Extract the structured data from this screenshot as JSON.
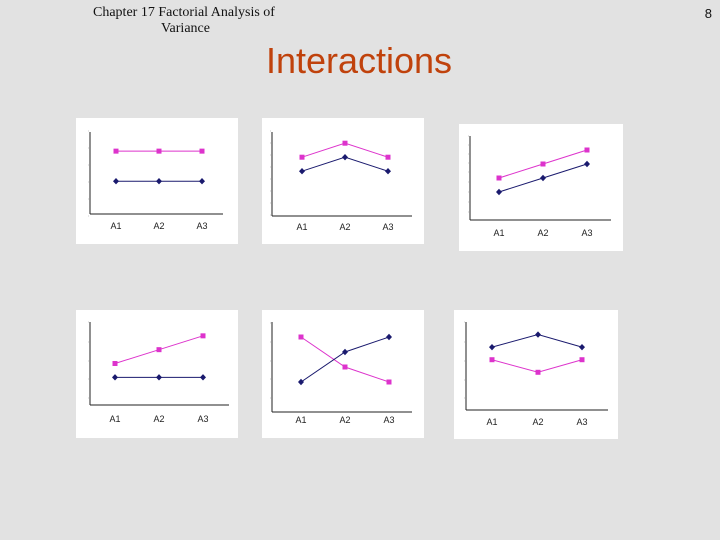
{
  "header": {
    "chapter_line1": "Chapter 17  Factorial Analysis of",
    "chapter_line2": "Variance",
    "slide_number": "8",
    "title": "Interactions"
  },
  "colors": {
    "series_b1": "#1a1a6e",
    "series_b2": "#dd33cc",
    "title": "#c0420c"
  },
  "chart_data": [
    {
      "type": "line",
      "categories": [
        "A1",
        "A2",
        "A3"
      ],
      "series": [
        {
          "values": [
            2.3,
            2.3,
            2.3
          ]
        },
        {
          "values": [
            1.2,
            1.2,
            1.2
          ]
        }
      ],
      "ylim": [
        0,
        3
      ]
    },
    {
      "type": "line",
      "categories": [
        "A1",
        "A2",
        "A3"
      ],
      "series": [
        {
          "values": [
            2.1,
            2.6,
            2.1
          ]
        },
        {
          "values": [
            1.6,
            2.1,
            1.6
          ]
        }
      ],
      "ylim": [
        0,
        3
      ]
    },
    {
      "type": "line",
      "categories": [
        "A1",
        "A2",
        "A3"
      ],
      "series": [
        {
          "values": [
            1.5,
            2.0,
            2.5
          ]
        },
        {
          "values": [
            1.0,
            1.5,
            2.0
          ]
        }
      ],
      "ylim": [
        0,
        3
      ]
    },
    {
      "type": "line",
      "categories": [
        "A1",
        "A2",
        "A3"
      ],
      "series": [
        {
          "values": [
            1.5,
            2.0,
            2.5
          ]
        },
        {
          "values": [
            1.0,
            1.0,
            1.0
          ]
        }
      ],
      "ylim": [
        0,
        3
      ]
    },
    {
      "type": "line",
      "categories": [
        "A1",
        "A2",
        "A3"
      ],
      "series": [
        {
          "values": [
            2.5,
            1.5,
            1.0
          ]
        },
        {
          "values": [
            1.0,
            2.0,
            2.5
          ]
        }
      ],
      "ylim": [
        0,
        3
      ]
    },
    {
      "type": "line",
      "categories": [
        "A1",
        "A2",
        "A3"
      ],
      "series": [
        {
          "values": [
            2.0,
            1.5,
            2.0
          ]
        },
        {
          "values": [
            2.5,
            3.0,
            2.5
          ]
        }
      ],
      "ylim": [
        0,
        3.5
      ]
    }
  ]
}
